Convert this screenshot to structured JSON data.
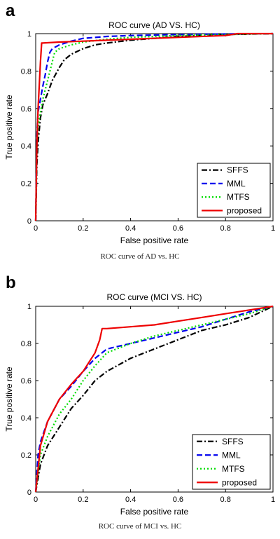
{
  "chart_data": [
    {
      "panel_letter": "a",
      "caption": "ROC curve of AD vs. HC",
      "type": "line",
      "title": "ROC curve (AD VS. HC)",
      "xlabel": "False positive rate",
      "ylabel": "True positive rate",
      "xlim": [
        0,
        1
      ],
      "ylim": [
        0,
        1
      ],
      "xticks": [
        0,
        0.2,
        0.4,
        0.6,
        0.8,
        1
      ],
      "yticks": [
        0,
        0.2,
        0.4,
        0.6,
        0.8,
        1
      ],
      "xtick_labels": [
        "0",
        "0.2",
        "0.4",
        "0.6",
        "0.8",
        "1"
      ],
      "ytick_labels": [
        "0",
        "0.2",
        "0.4",
        "0.6",
        "0.8",
        "1"
      ],
      "grid": false,
      "legend_position": "bottom-right",
      "series": [
        {
          "name": "SFFS",
          "color": "#000000",
          "dash": "dashdot",
          "x": [
            0,
            0.005,
            0.01,
            0.02,
            0.03,
            0.05,
            0.07,
            0.1,
            0.12,
            0.15,
            0.2,
            0.25,
            0.3,
            0.4,
            0.5,
            0.6,
            0.8,
            1.0
          ],
          "y": [
            0,
            0.3,
            0.42,
            0.55,
            0.62,
            0.68,
            0.75,
            0.82,
            0.86,
            0.89,
            0.92,
            0.94,
            0.95,
            0.965,
            0.975,
            0.985,
            0.995,
            1.0
          ]
        },
        {
          "name": "MML",
          "color": "#0000ee",
          "dash": "dashed",
          "x": [
            0,
            0.005,
            0.01,
            0.02,
            0.03,
            0.04,
            0.05,
            0.06,
            0.07,
            0.1,
            0.15,
            0.2,
            0.3,
            0.4,
            0.6,
            0.8,
            1.0
          ],
          "y": [
            0,
            0.45,
            0.58,
            0.65,
            0.72,
            0.78,
            0.85,
            0.9,
            0.92,
            0.94,
            0.96,
            0.975,
            0.985,
            0.99,
            0.995,
            0.998,
            1.0
          ]
        },
        {
          "name": "MTFS",
          "color": "#00dd00",
          "dash": "dotted",
          "x": [
            0,
            0.005,
            0.01,
            0.02,
            0.03,
            0.05,
            0.07,
            0.08,
            0.1,
            0.15,
            0.2,
            0.3,
            0.4,
            0.6,
            0.8,
            1.0
          ],
          "y": [
            0,
            0.4,
            0.5,
            0.58,
            0.65,
            0.75,
            0.85,
            0.9,
            0.92,
            0.94,
            0.955,
            0.97,
            0.98,
            0.99,
            0.995,
            1.0
          ]
        },
        {
          "name": "proposed",
          "color": "#ee0000",
          "dash": "solid",
          "x": [
            0,
            0.005,
            0.01,
            0.02,
            0.025,
            0.03,
            0.1,
            0.2,
            0.4,
            0.6,
            0.8,
            0.85,
            1.0
          ],
          "y": [
            0,
            0.4,
            0.6,
            0.85,
            0.95,
            0.95,
            0.955,
            0.96,
            0.97,
            0.98,
            0.99,
            1.0,
            1.0
          ]
        }
      ]
    },
    {
      "panel_letter": "b",
      "caption": "ROC curve of MCI vs. HC",
      "type": "line",
      "title": "ROC curve (MCI VS. HC)",
      "xlabel": "False positive rate",
      "ylabel": "True positive rate",
      "xlim": [
        0,
        1
      ],
      "ylim": [
        0,
        1
      ],
      "xticks": [
        0,
        0.2,
        0.4,
        0.6,
        0.8,
        1
      ],
      "yticks": [
        0,
        0.2,
        0.4,
        0.6,
        0.8,
        1
      ],
      "xtick_labels": [
        "0",
        "0.2",
        "0.4",
        "0.6",
        "0.8",
        "1"
      ],
      "ytick_labels": [
        "0",
        "0.2",
        "0.4",
        "0.6",
        "0.8",
        "1"
      ],
      "grid": false,
      "legend_position": "bottom-right",
      "series": [
        {
          "name": "SFFS",
          "color": "#000000",
          "dash": "dashdot",
          "x": [
            0,
            0.02,
            0.05,
            0.1,
            0.15,
            0.2,
            0.25,
            0.3,
            0.4,
            0.5,
            0.6,
            0.7,
            0.8,
            0.9,
            1.0
          ],
          "y": [
            0,
            0.15,
            0.25,
            0.35,
            0.45,
            0.52,
            0.6,
            0.65,
            0.72,
            0.77,
            0.82,
            0.87,
            0.9,
            0.94,
            1.0
          ]
        },
        {
          "name": "MML",
          "color": "#0000ee",
          "dash": "dashed",
          "x": [
            0,
            0.01,
            0.02,
            0.05,
            0.1,
            0.15,
            0.2,
            0.25,
            0.3,
            0.4,
            0.5,
            0.6,
            0.7,
            0.8,
            0.9,
            1.0
          ],
          "y": [
            0,
            0.2,
            0.27,
            0.38,
            0.5,
            0.57,
            0.65,
            0.72,
            0.77,
            0.8,
            0.83,
            0.86,
            0.89,
            0.93,
            0.97,
            1.0
          ]
        },
        {
          "name": "MTFS",
          "color": "#00dd00",
          "dash": "dotted",
          "x": [
            0,
            0.02,
            0.05,
            0.1,
            0.15,
            0.2,
            0.25,
            0.3,
            0.4,
            0.5,
            0.6,
            0.7,
            0.8,
            0.9,
            1.0
          ],
          "y": [
            0,
            0.2,
            0.3,
            0.42,
            0.5,
            0.6,
            0.68,
            0.75,
            0.8,
            0.84,
            0.87,
            0.9,
            0.93,
            0.96,
            1.0
          ]
        },
        {
          "name": "proposed",
          "color": "#ee0000",
          "dash": "solid",
          "x": [
            0,
            0.02,
            0.05,
            0.1,
            0.15,
            0.2,
            0.25,
            0.27,
            0.28,
            0.3,
            0.4,
            0.5,
            0.6,
            0.7,
            0.8,
            0.9,
            1.0
          ],
          "y": [
            0,
            0.25,
            0.38,
            0.5,
            0.58,
            0.65,
            0.75,
            0.82,
            0.88,
            0.88,
            0.89,
            0.9,
            0.92,
            0.94,
            0.96,
            0.98,
            1.0
          ]
        }
      ]
    }
  ]
}
